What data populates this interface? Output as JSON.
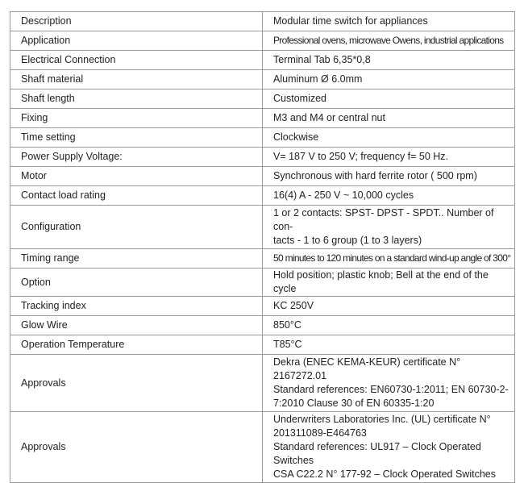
{
  "rows": [
    {
      "label": "Description",
      "value": "Modular time switch for appliances"
    },
    {
      "label": "Application",
      "value": "Professional ovens, microwave Owens, industrial applications",
      "condensed": true
    },
    {
      "label": "Electrical Connection",
      "value": "Terminal Tab 6,35*0,8"
    },
    {
      "label": "Shaft material",
      "value": "Aluminum Ø 6.0mm"
    },
    {
      "label": "Shaft length",
      "value": "Customized"
    },
    {
      "label": "Fixing",
      "value": "M3 and M4 or central nut"
    },
    {
      "label": "Time setting",
      "value": "Clockwise"
    },
    {
      "label": "Power Supply Voltage:",
      "value": "V= 187 V to 250 V; frequency f= 50 Hz."
    },
    {
      "label": "Motor",
      "value": "Synchronous with hard ferrite rotor ( 500 rpm)"
    },
    {
      "label": "Contact load rating",
      "value": "16(4) A - 250 V ~ 10,000 cycles"
    },
    {
      "label": "Configuration",
      "lines": [
        "1 or 2 contacts: SPST- DPST - SPDT.. Number of con-",
        "tacts - 1 to 6 group (1 to 3 layers)"
      ]
    },
    {
      "label": "Timing range",
      "value": "50 minutes to 120 minutes on a standard wind-up angle of 300°",
      "condensed": true
    },
    {
      "label": "Option",
      "value": "Hold position; plastic knob; Bell at the end of the cycle"
    },
    {
      "label": "Tracking index",
      "value": "KC 250V"
    },
    {
      "label": "Glow Wire",
      "value": "850°C"
    },
    {
      "label": "Operation Temperature",
      "value": "T85°C"
    },
    {
      "label": "Approvals",
      "lines": [
        "Dekra (ENEC KEMA-KEUR) certificate N° 2167272.01",
        "Standard references: EN60730-1:2011; EN 60730-2-",
        "7:2010 Clause 30 of EN 60335-1:20"
      ]
    },
    {
      "label": "Approvals",
      "lines": [
        "Underwriters Laboratories Inc. (UL) certificate N°",
        "201311089-E464763",
        "Standard references: UL917 – Clock Operated Switches",
        "CSA C22.2 N° 177-92 – Clock Operated Switches"
      ]
    }
  ]
}
